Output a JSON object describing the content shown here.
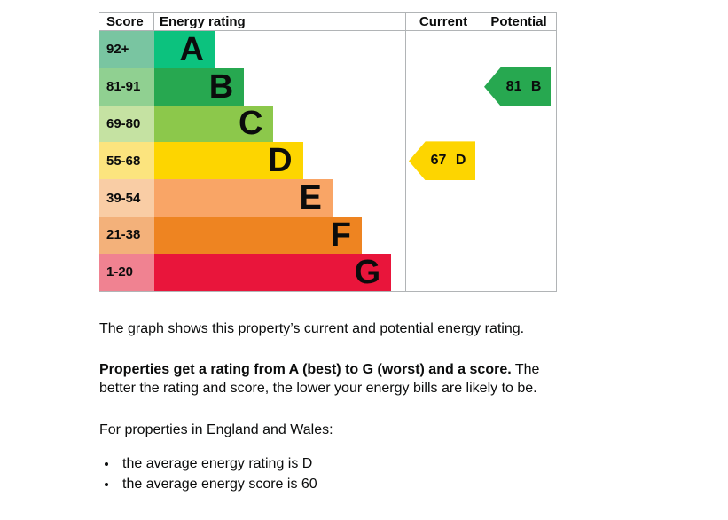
{
  "table": {
    "headers": [
      "Score",
      "Energy rating",
      "Current",
      "Potential"
    ]
  },
  "chart_data": {
    "type": "bar",
    "title": "Energy rating graph (EPC)",
    "columns": [
      "Score",
      "Energy rating",
      "Current",
      "Potential"
    ],
    "bands": [
      {
        "letter": "A",
        "score_range": "92+",
        "color": "#0cc27e",
        "tint": "#79c5a1"
      },
      {
        "letter": "B",
        "score_range": "81-91",
        "color": "#27a850",
        "tint": "#90d091"
      },
      {
        "letter": "C",
        "score_range": "69-80",
        "color": "#8cc84b",
        "tint": "#c5e2a2"
      },
      {
        "letter": "D",
        "score_range": "55-68",
        "color": "#fdd500",
        "tint": "#fce47e"
      },
      {
        "letter": "E",
        "score_range": "39-54",
        "color": "#f9a566",
        "tint": "#f9cda5"
      },
      {
        "letter": "F",
        "score_range": "21-38",
        "color": "#ee8421",
        "tint": "#f3b17a"
      },
      {
        "letter": "G",
        "score_range": "1-20",
        "color": "#e9153b",
        "tint": "#f08291"
      }
    ],
    "current": {
      "score": 67,
      "band": "D",
      "label": "67 D",
      "color": "#fdd500"
    },
    "potential": {
      "score": 81,
      "band": "B",
      "label": "81 B",
      "color": "#27a850"
    },
    "border_color": "#b1b4b6"
  },
  "text": {
    "intro": "The graph shows this property’s current and potential energy rating.",
    "rating_bold": "Properties get a rating from A (best) to G (worst) and a score.",
    "rating_rest": " The better the rating and score, the lower your energy bills are likely to be.",
    "region_heading": "For properties in England and Wales:",
    "bullets": [
      "the average energy rating is D",
      "the average energy score is 60"
    ]
  }
}
